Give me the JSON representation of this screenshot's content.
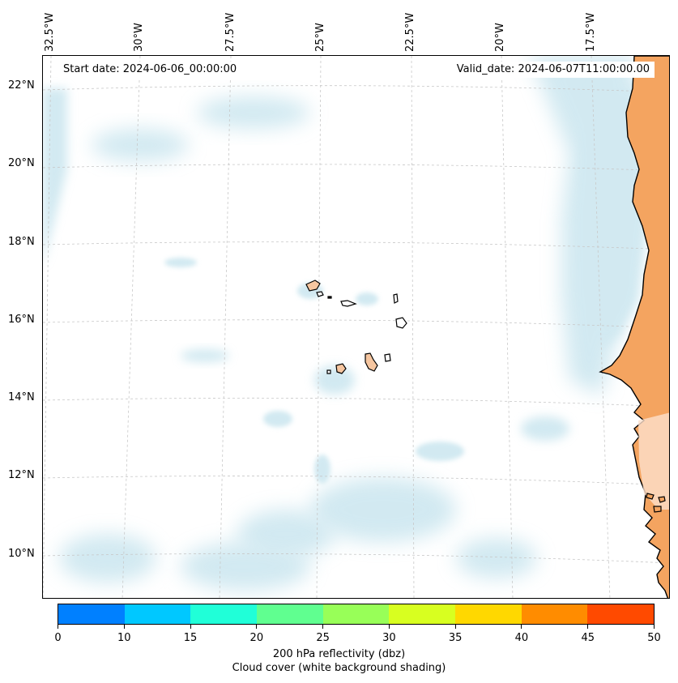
{
  "axes": {
    "lon_labels": [
      "32.5°W",
      "30°W",
      "27.5°W",
      "25°W",
      "22.5°W",
      "20°W",
      "17.5°W"
    ],
    "lat_labels": [
      "22°N",
      "20°N",
      "18°N",
      "16°N",
      "14°N",
      "12°N",
      "10°N"
    ]
  },
  "header": {
    "start_date": "Start date: 2024-06-06_00:00:00",
    "valid_date": "Valid_date: 2024-06-07T11:00:00.00"
  },
  "colorbar": {
    "ticks": [
      "0",
      "10",
      "15",
      "20",
      "25",
      "30",
      "35",
      "40",
      "45",
      "50"
    ],
    "colors": [
      "#0080ff",
      "#00c8ff",
      "#20ffd8",
      "#60ff90",
      "#98ff58",
      "#d8ff20",
      "#ffd800",
      "#ff8c00",
      "#ff4a00"
    ],
    "label_main": "200 hPa reflectivity (dbz)",
    "label_sub": "Cloud cover (white background shading)"
  },
  "colors": {
    "land": "#f4a460",
    "sea_cloud": "#add8e6",
    "island_fill": "#f6c6a0",
    "gridline": "#c8c8c8"
  }
}
